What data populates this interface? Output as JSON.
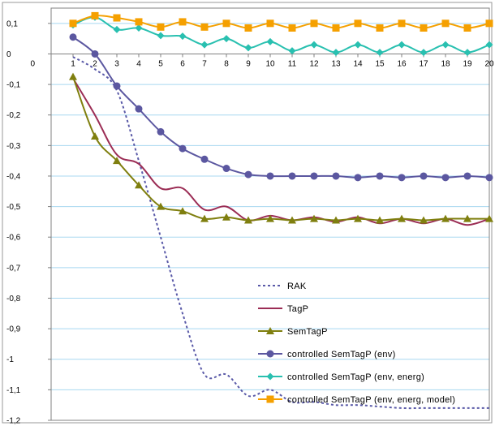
{
  "chart_data": {
    "type": "line",
    "x": [
      1,
      2,
      3,
      4,
      5,
      6,
      7,
      8,
      9,
      10,
      11,
      12,
      13,
      14,
      15,
      16,
      17,
      18,
      19,
      20
    ],
    "xlim": [
      0,
      20
    ],
    "ylim": [
      -1.2,
      0.15
    ],
    "x_ticks": [
      "0",
      "1",
      "2",
      "3",
      "4",
      "5",
      "6",
      "7",
      "8",
      "9",
      "10",
      "11",
      "12",
      "13",
      "14",
      "15",
      "16",
      "17",
      "18",
      "19",
      "20"
    ],
    "y_ticks": [
      "0,1",
      "0",
      "-0,1",
      "-0,2",
      "-0,3",
      "-0,4",
      "-0,5",
      "-0,6",
      "-0,7",
      "-0,8",
      "-0,9",
      "-1",
      "-1,1",
      "-1,2"
    ],
    "y_tick_values": [
      0.1,
      0,
      -0.1,
      -0.2,
      -0.3,
      -0.4,
      -0.5,
      -0.6,
      -0.7,
      -0.8,
      -0.9,
      -1,
      -1.1,
      -1.2
    ],
    "grid": "horizontal",
    "legend_position": "bottom-right",
    "series": [
      {
        "name": "RAK",
        "color": "#5a5aa8",
        "style": "dashed",
        "marker": "none",
        "values": [
          -0.01,
          -0.05,
          -0.12,
          -0.35,
          -0.6,
          -0.85,
          -1.05,
          -1.05,
          -1.12,
          -1.1,
          -1.14,
          -1.14,
          -1.15,
          -1.15,
          -1.155,
          -1.16,
          -1.16,
          -1.16,
          -1.16,
          -1.16
        ]
      },
      {
        "name": "TagP",
        "color": "#9b2d55",
        "style": "solid",
        "marker": "none",
        "values": [
          -0.08,
          -0.2,
          -0.33,
          -0.36,
          -0.44,
          -0.44,
          -0.51,
          -0.5,
          -0.545,
          -0.53,
          -0.545,
          -0.535,
          -0.55,
          -0.535,
          -0.555,
          -0.54,
          -0.555,
          -0.54,
          -0.56,
          -0.54
        ]
      },
      {
        "name": "SemTagP",
        "color": "#7f7f0f",
        "style": "solid",
        "marker": "triangle",
        "values": [
          -0.075,
          -0.27,
          -0.35,
          -0.43,
          -0.5,
          -0.515,
          -0.54,
          -0.535,
          -0.545,
          -0.54,
          -0.545,
          -0.54,
          -0.545,
          -0.54,
          -0.545,
          -0.54,
          -0.545,
          -0.54,
          -0.54,
          -0.54
        ]
      },
      {
        "name": "controlled SemTagP (env)",
        "color": "#5b57a0",
        "style": "solid",
        "marker": "circle",
        "values": [
          0.055,
          0.0,
          -0.105,
          -0.18,
          -0.255,
          -0.31,
          -0.345,
          -0.375,
          -0.395,
          -0.4,
          -0.4,
          -0.4,
          -0.4,
          -0.405,
          -0.4,
          -0.405,
          -0.4,
          -0.405,
          -0.4,
          -0.405
        ]
      },
      {
        "name": "controlled SemTagP (env, energ)",
        "color": "#29c0b0",
        "style": "solid",
        "marker": "diamond",
        "values": [
          0.095,
          0.12,
          0.08,
          0.085,
          0.06,
          0.058,
          0.03,
          0.05,
          0.02,
          0.04,
          0.01,
          0.03,
          0.005,
          0.03,
          0.005,
          0.03,
          0.005,
          0.03,
          0.005,
          0.03
        ]
      },
      {
        "name": "controlled SemTagP (env, energ, model)",
        "color": "#f5a000",
        "style": "solid",
        "marker": "square",
        "values": [
          0.1,
          0.125,
          0.118,
          0.105,
          0.088,
          0.105,
          0.088,
          0.1,
          0.085,
          0.1,
          0.085,
          0.1,
          0.085,
          0.1,
          0.085,
          0.1,
          0.085,
          0.1,
          0.085,
          0.1
        ]
      }
    ]
  }
}
